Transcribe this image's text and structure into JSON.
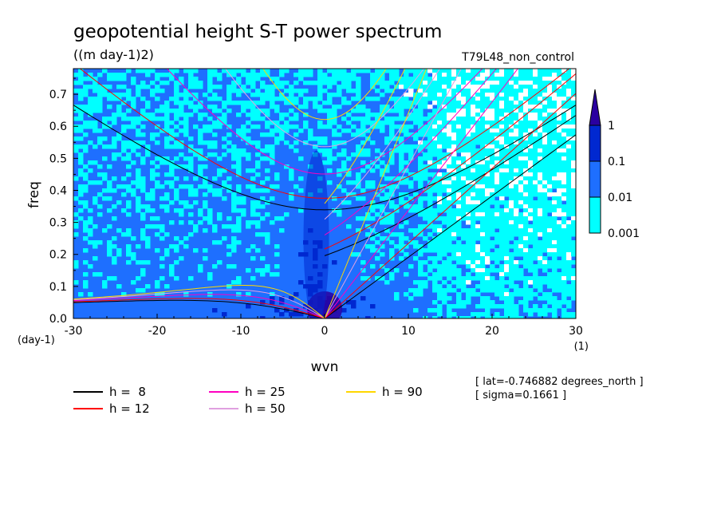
{
  "chart_data": {
    "type": "heatmap",
    "title": "geopotential height S-T power spectrum",
    "units": "((m day-1)2)",
    "run_label": "T79L48_non_control",
    "xlabel": "wvn",
    "ylabel": "freq",
    "x_unit": "(1)",
    "y_unit": "(day-1)",
    "xlim": [
      -30,
      30
    ],
    "ylim": [
      0,
      0.78
    ],
    "x_ticks": [
      "-30",
      "-20",
      "-10",
      "0",
      "10",
      "20",
      "30"
    ],
    "y_ticks": [
      "0.0",
      "0.1",
      "0.2",
      "0.3",
      "0.4",
      "0.5",
      "0.6",
      "0.7"
    ],
    "colorbar": {
      "levels": [
        "0.001",
        "0.01",
        "0.1",
        "1"
      ],
      "colors": [
        "#00ffff",
        "#1e6fff",
        "#0028d0",
        "#2a00a0"
      ],
      "extend": "max"
    },
    "annotation": {
      "lat": "[ lat=-0.746882 degrees_north ]",
      "sigma": "[ sigma=0.1661 ]"
    },
    "legend": [
      {
        "label": "h =  8",
        "color": "#000000",
        "h": 8
      },
      {
        "label": "h = 12",
        "color": "#ff0000",
        "h": 12
      },
      {
        "label": "h = 25",
        "color": "#ff00c0",
        "h": 25
      },
      {
        "label": "h = 50",
        "color": "#e0a0e0",
        "h": 50
      },
      {
        "label": "h = 90",
        "color": "#ffd700",
        "h": 90
      }
    ]
  }
}
